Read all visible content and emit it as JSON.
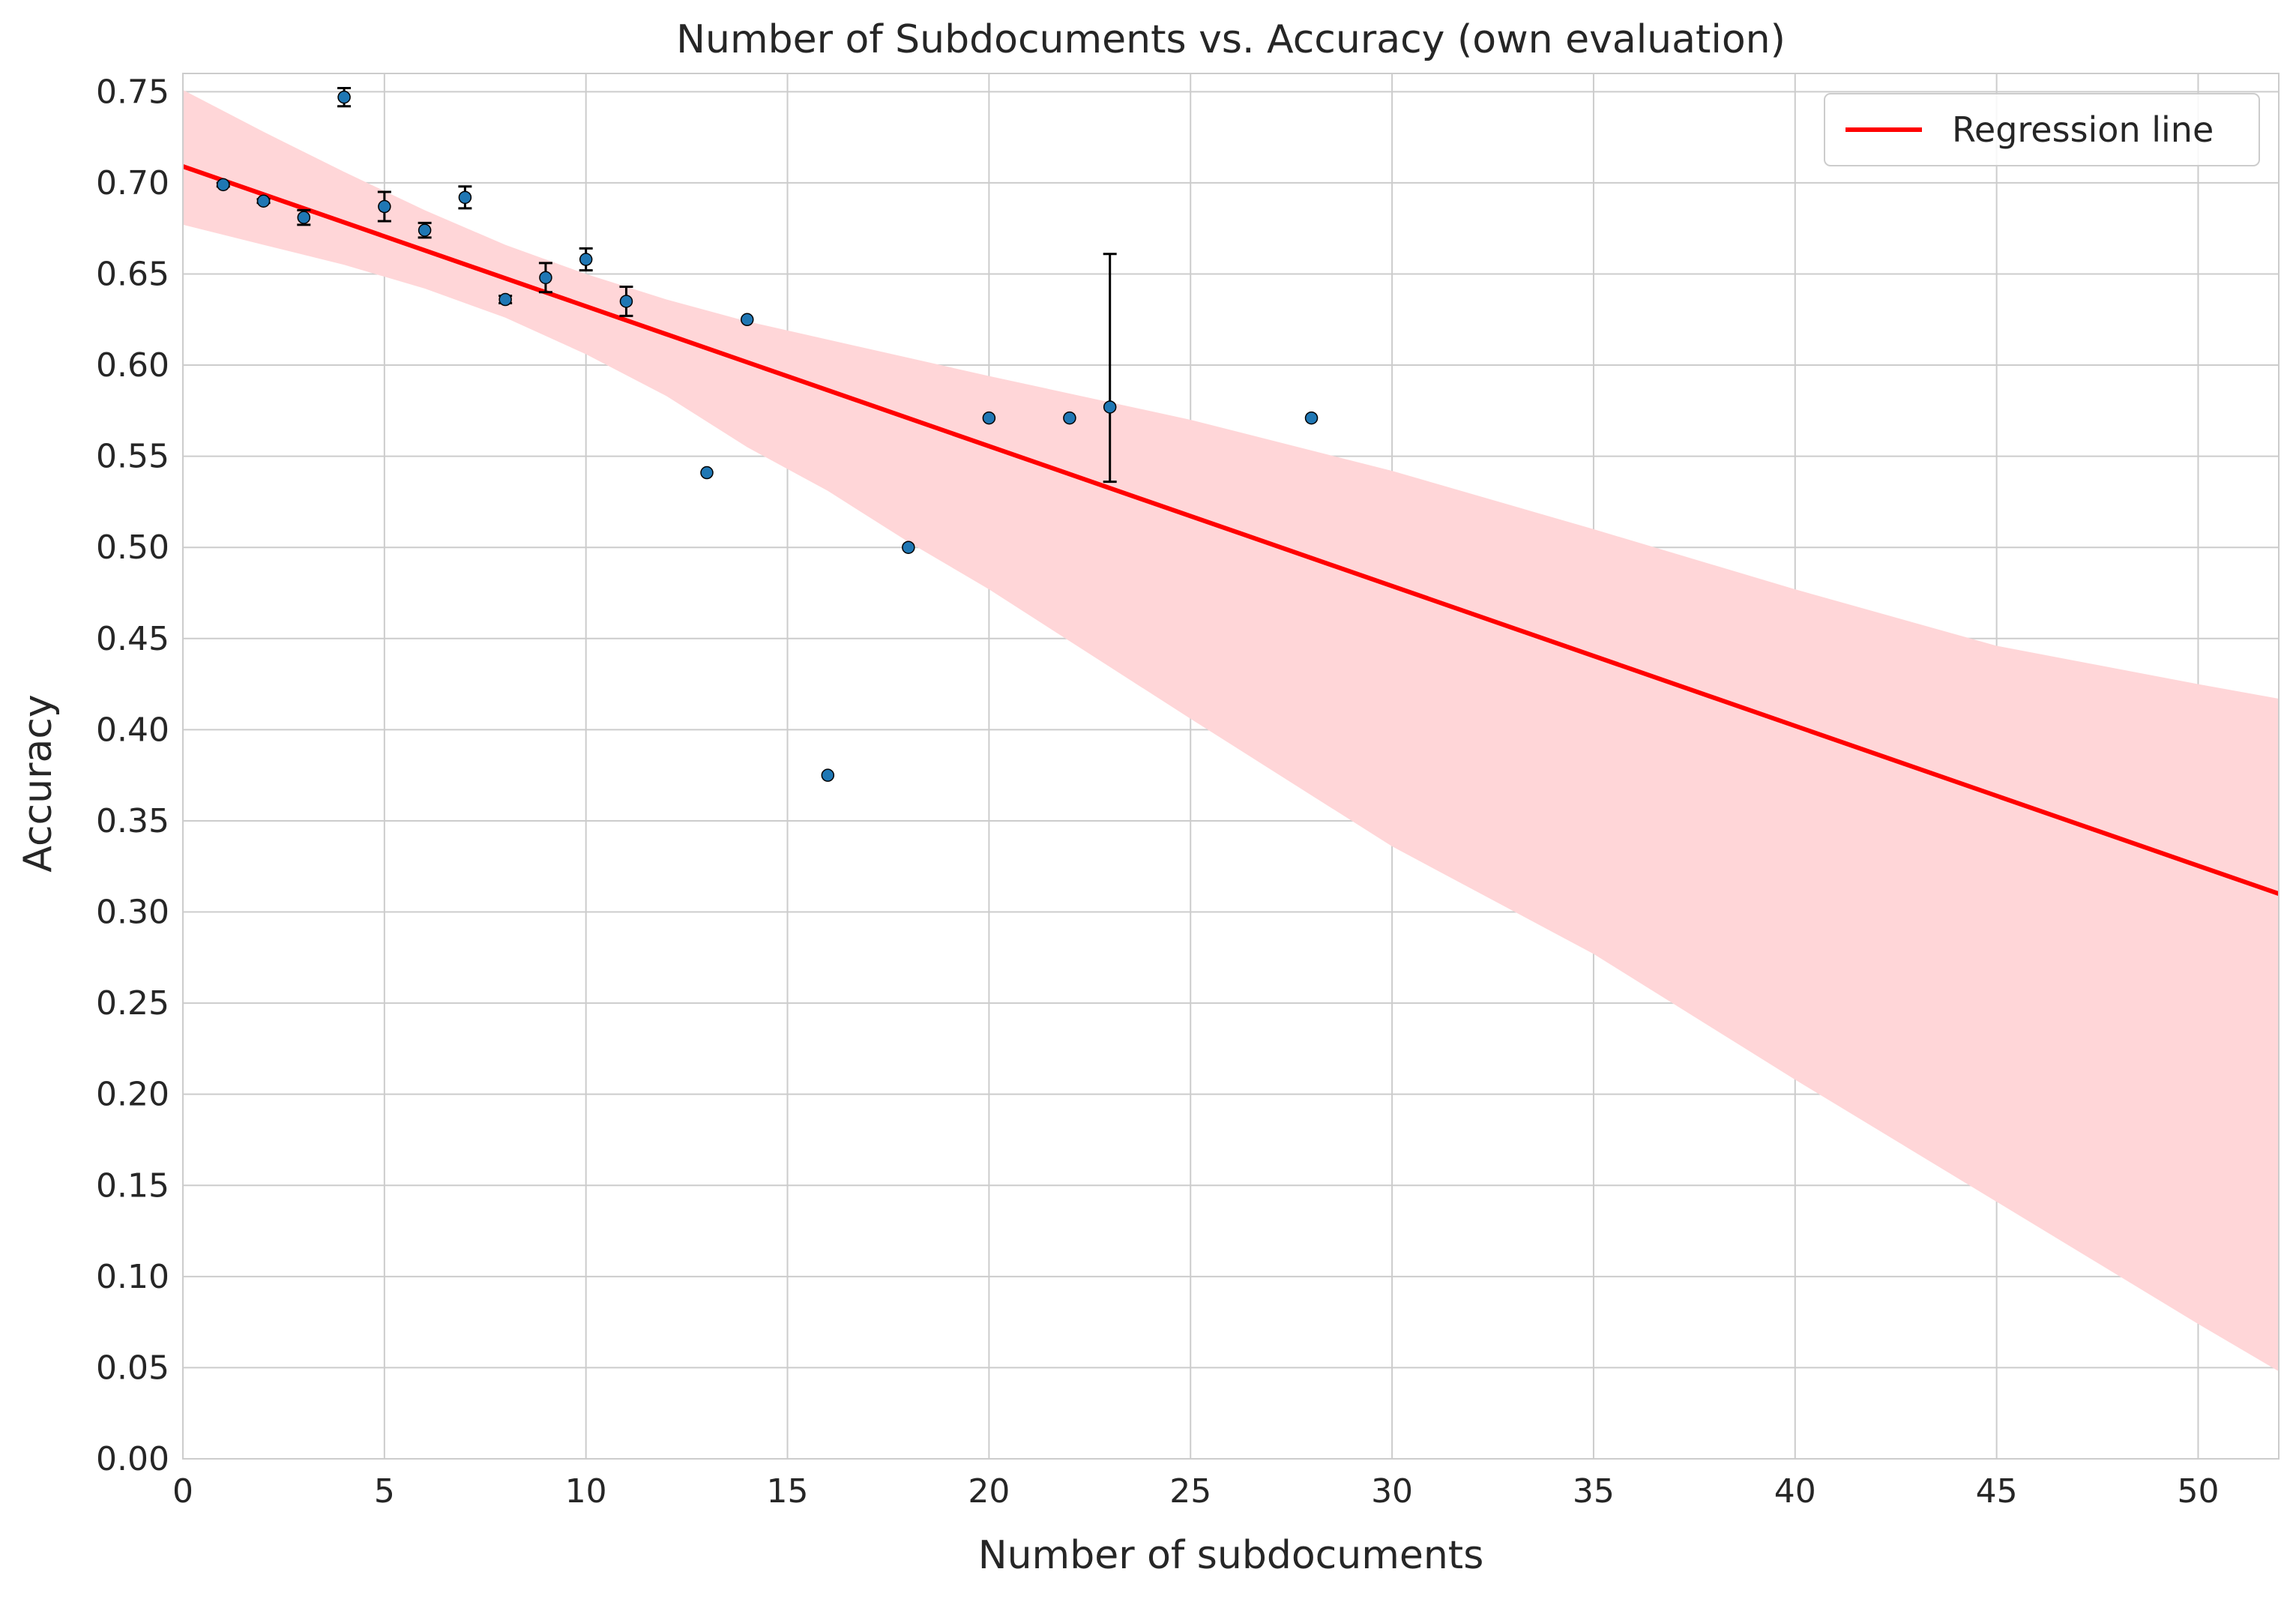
{
  "chart_data": {
    "type": "scatter",
    "title": "Number of Subdocuments vs. Accuracy (own evaluation)",
    "xlabel": "Number of subdocuments",
    "ylabel": "Accuracy",
    "xlim": [
      0,
      52
    ],
    "ylim": [
      0,
      0.76
    ],
    "xticks": [
      0,
      5,
      10,
      15,
      20,
      25,
      30,
      35,
      40,
      45,
      50
    ],
    "xtick_labels": [
      "0",
      "5",
      "10",
      "15",
      "20",
      "25",
      "30",
      "35",
      "40",
      "45",
      "50"
    ],
    "yticks": [
      0,
      0.05,
      0.1,
      0.15,
      0.2,
      0.25,
      0.3,
      0.35,
      0.4,
      0.45,
      0.5,
      0.55,
      0.6,
      0.65,
      0.7,
      0.75
    ],
    "ytick_labels": [
      "0.00",
      "0.05",
      "0.10",
      "0.15",
      "0.20",
      "0.25",
      "0.30",
      "0.35",
      "0.40",
      "0.45",
      "0.50",
      "0.55",
      "0.60",
      "0.65",
      "0.70",
      "0.75"
    ],
    "grid": true,
    "legend": {
      "position": "top-right",
      "entries": [
        {
          "label": "Regression line",
          "color": "#ff0000"
        }
      ]
    },
    "points": [
      {
        "x": 1,
        "y": 0.699,
        "err": 0.001
      },
      {
        "x": 2,
        "y": 0.69,
        "err": 0.001
      },
      {
        "x": 3,
        "y": 0.681,
        "err": 0.004
      },
      {
        "x": 4,
        "y": 0.747,
        "err": 0.005
      },
      {
        "x": 5,
        "y": 0.687,
        "err": 0.008
      },
      {
        "x": 6,
        "y": 0.674,
        "err": 0.004
      },
      {
        "x": 7,
        "y": 0.692,
        "err": 0.006
      },
      {
        "x": 8,
        "y": 0.636,
        "err": 0.002
      },
      {
        "x": 9,
        "y": 0.648,
        "err": 0.008
      },
      {
        "x": 10,
        "y": 0.658,
        "err": 0.006
      },
      {
        "x": 11,
        "y": 0.635,
        "err": 0.008
      },
      {
        "x": 13,
        "y": 0.541,
        "err": 0
      },
      {
        "x": 14,
        "y": 0.625,
        "err": 0
      },
      {
        "x": 16,
        "y": 0.375,
        "err": 0
      },
      {
        "x": 18,
        "y": 0.5,
        "err": 0
      },
      {
        "x": 20,
        "y": 0.571,
        "err": 0
      },
      {
        "x": 22,
        "y": 0.571,
        "err": 0
      },
      {
        "x": 23,
        "y": 0.577,
        "err": 0.063,
        "err_low": 0.536,
        "err_high": 0.661
      },
      {
        "x": 28,
        "y": 0.571,
        "err": 0
      }
    ],
    "regression": {
      "x": [
        0,
        52
      ],
      "y": [
        0.709,
        0.31
      ]
    },
    "confidence_band": {
      "x": [
        0,
        2,
        4,
        6,
        8,
        10,
        12,
        14,
        16,
        18,
        20,
        25,
        30,
        35,
        40,
        45,
        50,
        52
      ],
      "upper": [
        0.751,
        0.728,
        0.706,
        0.685,
        0.666,
        0.65,
        0.636,
        0.624,
        0.614,
        0.604,
        0.594,
        0.57,
        0.542,
        0.51,
        0.477,
        0.446,
        0.425,
        0.417
      ],
      "lower": [
        0.677,
        0.666,
        0.655,
        0.642,
        0.626,
        0.606,
        0.583,
        0.555,
        0.531,
        0.503,
        0.477,
        0.406,
        0.336,
        0.277,
        0.208,
        0.141,
        0.074,
        0.048
      ]
    },
    "colors": {
      "regression": "#ff0000",
      "band": "#ffd6d8",
      "points": "#1f77b4",
      "errorbars": "#000000",
      "grid": "#cccccc"
    }
  }
}
